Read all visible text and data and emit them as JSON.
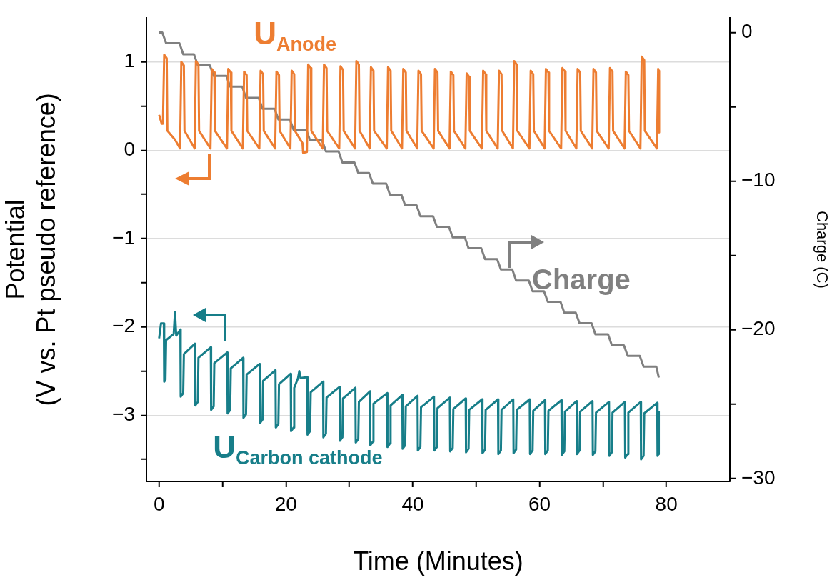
{
  "chart_data": {
    "type": "line",
    "xlabel": "Time (Minutes)",
    "ylabel": "Potential\n(V vs. Pt pseudo reference)",
    "y2label": "Charge (C)",
    "xlim": [
      -2,
      90
    ],
    "xticks": [
      0,
      {
        "value": 10,
        "label": null
      },
      20,
      {
        "value": 30,
        "label": null
      },
      40,
      {
        "value": 50,
        "label": null
      },
      60,
      {
        "value": 70,
        "label": null
      },
      80
    ],
    "ylim": [
      -3.75,
      1.5
    ],
    "yticks": [
      {
        "value": -3.5,
        "label": null
      },
      {
        "value": -3,
        "label": "−3"
      },
      {
        "value": -2.5,
        "label": null
      },
      {
        "value": -2,
        "label": "−2"
      },
      {
        "value": -1.5,
        "label": null
      },
      {
        "value": -1,
        "label": "−1"
      },
      {
        "value": -0.5,
        "label": null
      },
      0,
      {
        "value": 0.5,
        "label": null
      },
      1
    ],
    "y2lim": [
      -30.2,
      1
    ],
    "y2ticks": [
      {
        "value": -30,
        "label": "−30"
      },
      {
        "value": -25,
        "label": null
      },
      {
        "value": -20,
        "label": "−20"
      },
      {
        "value": -15,
        "label": null
      },
      {
        "value": -10,
        "label": "−10"
      },
      {
        "value": -5,
        "label": null
      },
      0
    ],
    "grid": "y",
    "legend": "center right",
    "marker": "none",
    "line_style": "solid",
    "series": [
      {
        "name": "U$_{Anode}$",
        "color": "#ed7d31",
        "x": [
          0,
          0.4,
          0.6,
          0.8,
          1.2,
          1.3,
          2.5,
          3.3,
          3.5,
          3.9,
          4.0,
          5.6,
          5.8,
          6.2,
          6.3,
          8.1,
          8.3,
          8.7,
          8.8,
          10.7,
          10.9,
          11.3,
          11.4,
          13.2,
          13.4,
          13.8,
          13.9,
          15.8,
          16.0,
          16.4,
          16.5,
          18.3,
          18.5,
          18.9,
          19.0,
          20.7,
          20.9,
          21.3,
          21.4,
          22.6,
          22.7,
          23.3,
          23.5,
          23.9,
          24.0,
          25.8,
          26.0,
          26.4,
          26.5,
          28.4,
          28.6,
          29.0,
          29.1,
          30.9,
          31.1,
          31.5,
          31.6,
          33.2,
          33.4,
          33.8,
          33.9,
          35.9,
          36.1,
          36.5,
          36.6,
          38.3,
          38.5,
          38.9,
          39.0,
          40.7,
          40.9,
          41.3,
          41.4,
          43.3,
          43.5,
          43.9,
          44.0,
          45.8,
          46.0,
          46.4,
          46.5,
          48.3,
          48.5,
          48.9,
          49.0,
          50.9,
          51.1,
          51.5,
          51.6,
          53.4,
          53.6,
          54.0,
          54.1,
          55.8,
          56.0,
          56.4,
          56.5,
          58.4,
          58.6,
          59.0,
          59.1,
          60.8,
          61.0,
          61.4,
          61.5,
          63.4,
          63.6,
          64.0,
          64.1,
          65.8,
          66.0,
          66.4,
          66.5,
          68.3,
          68.5,
          68.9,
          69.0,
          70.9,
          71.1,
          71.5,
          71.6,
          73.4,
          73.6,
          74.0,
          74.1,
          75.9,
          76.1,
          76.5,
          76.6,
          78.5,
          78.7,
          78.8,
          78.85
        ],
        "values": [
          0.4,
          0.3,
          0.3,
          1.08,
          1.04,
          0.22,
          0.12,
          0.02,
          1.0,
          0.96,
          0.22,
          0.02,
          1.01,
          0.97,
          0.22,
          0.02,
          0.92,
          0.88,
          0.22,
          0.02,
          0.92,
          0.88,
          0.22,
          0.02,
          0.89,
          0.85,
          0.22,
          0.02,
          0.9,
          0.86,
          0.22,
          0.02,
          0.89,
          0.85,
          0.22,
          0.02,
          0.9,
          0.86,
          0.22,
          0.08,
          -0.03,
          -0.02,
          0.97,
          0.93,
          0.22,
          0.02,
          0.97,
          0.93,
          0.22,
          0.02,
          0.95,
          0.91,
          0.22,
          0.02,
          1.01,
          0.97,
          0.22,
          0.02,
          0.94,
          0.9,
          0.22,
          0.02,
          0.94,
          0.9,
          0.22,
          0.02,
          0.92,
          0.88,
          0.22,
          0.02,
          0.9,
          0.86,
          0.22,
          0.02,
          0.92,
          0.88,
          0.22,
          0.02,
          0.89,
          0.85,
          0.22,
          0.02,
          0.87,
          0.83,
          0.22,
          0.02,
          0.9,
          0.86,
          0.22,
          0.02,
          0.9,
          0.86,
          0.22,
          0.02,
          1.01,
          0.97,
          0.22,
          0.02,
          0.9,
          0.86,
          0.22,
          0.02,
          0.92,
          0.88,
          0.22,
          0.02,
          0.93,
          0.89,
          0.22,
          0.02,
          0.92,
          0.88,
          0.22,
          0.02,
          0.92,
          0.88,
          0.22,
          0.02,
          0.93,
          0.89,
          0.22,
          0.02,
          0.89,
          0.85,
          0.22,
          0.02,
          1.06,
          1.02,
          0.22,
          0.02,
          0.92,
          0.9,
          0.2
        ]
      },
      {
        "name": "U$_{Carbon cathode}$",
        "color": "#177e89",
        "x": [
          0,
          0.3,
          0.75,
          0.8,
          1.0,
          1.1,
          2.3,
          2.5,
          2.7,
          3.35,
          3.4,
          3.8,
          3.9,
          5.65,
          5.7,
          6.1,
          6.2,
          8.15,
          8.2,
          8.6,
          8.7,
          10.75,
          10.8,
          11.2,
          11.3,
          13.25,
          13.3,
          13.7,
          13.8,
          15.85,
          15.9,
          16.3,
          16.4,
          18.35,
          18.4,
          18.8,
          18.9,
          20.75,
          20.8,
          21.2,
          21.3,
          21.9,
          22.1,
          22.3,
          23.35,
          23.4,
          23.8,
          23.9,
          25.85,
          25.9,
          26.3,
          26.4,
          28.45,
          28.5,
          28.9,
          29.0,
          30.95,
          31.0,
          31.4,
          31.5,
          33.25,
          33.3,
          33.7,
          33.8,
          35.95,
          36.0,
          36.4,
          36.5,
          38.35,
          38.4,
          38.8,
          38.9,
          40.75,
          40.8,
          41.2,
          41.3,
          43.35,
          43.4,
          43.8,
          43.9,
          45.85,
          45.9,
          46.3,
          46.4,
          48.35,
          48.4,
          48.8,
          48.9,
          50.95,
          51.0,
          51.4,
          51.5,
          53.45,
          53.5,
          53.9,
          54.0,
          55.85,
          55.9,
          56.3,
          56.4,
          58.45,
          58.5,
          58.9,
          59.0,
          60.85,
          60.9,
          61.3,
          61.4,
          63.45,
          63.5,
          63.9,
          64.0,
          65.85,
          65.9,
          66.3,
          66.4,
          68.35,
          68.4,
          68.8,
          68.9,
          70.95,
          71.0,
          71.4,
          71.5,
          73.45,
          73.5,
          73.9,
          74.0,
          75.95,
          76.0,
          76.4,
          76.5,
          78.55,
          78.6,
          78.75,
          78.8
        ],
        "values": [
          -2.13,
          -1.96,
          -1.96,
          -2.62,
          -2.6,
          -2.15,
          -2.08,
          -1.83,
          -2.1,
          -2.03,
          -2.79,
          -2.75,
          -2.31,
          -2.19,
          -2.89,
          -2.85,
          -2.35,
          -2.23,
          -2.94,
          -2.9,
          -2.41,
          -2.29,
          -2.98,
          -2.94,
          -2.47,
          -2.35,
          -3.03,
          -2.99,
          -2.54,
          -2.42,
          -3.09,
          -3.05,
          -2.61,
          -2.49,
          -3.14,
          -3.1,
          -2.65,
          -2.53,
          -3.18,
          -3.14,
          -2.69,
          -2.58,
          -2.5,
          -2.58,
          -2.57,
          -3.22,
          -3.18,
          -2.74,
          -2.62,
          -3.25,
          -3.21,
          -2.8,
          -2.68,
          -3.29,
          -3.25,
          -2.81,
          -2.69,
          -3.31,
          -3.27,
          -2.85,
          -2.73,
          -3.34,
          -3.3,
          -2.87,
          -2.75,
          -3.36,
          -3.32,
          -2.89,
          -2.77,
          -3.38,
          -3.34,
          -2.9,
          -2.78,
          -3.4,
          -3.36,
          -2.91,
          -2.79,
          -3.4,
          -3.36,
          -2.92,
          -2.8,
          -3.41,
          -3.37,
          -2.93,
          -2.81,
          -3.42,
          -3.38,
          -2.94,
          -2.82,
          -3.43,
          -3.39,
          -2.94,
          -2.82,
          -3.44,
          -3.4,
          -2.94,
          -2.82,
          -3.43,
          -3.39,
          -2.94,
          -2.82,
          -3.44,
          -3.4,
          -2.95,
          -2.83,
          -3.44,
          -3.4,
          -2.95,
          -2.83,
          -3.45,
          -3.41,
          -2.96,
          -2.84,
          -3.44,
          -3.4,
          -2.96,
          -2.84,
          -3.45,
          -3.41,
          -2.97,
          -2.85,
          -3.46,
          -3.42,
          -2.97,
          -2.85,
          -3.48,
          -3.44,
          -2.97,
          -2.85,
          -3.5,
          -3.46,
          -2.98,
          -2.86,
          -3.46,
          -3.44,
          -2.95
        ]
      },
      {
        "name": "Charge",
        "color": "#808080",
        "axis": "y2",
        "x": [
          0,
          0.5,
          1.1,
          3.2,
          3.8,
          5.5,
          6.1,
          8.0,
          8.6,
          10.6,
          11.2,
          13.1,
          13.7,
          15.7,
          16.3,
          18.2,
          18.8,
          20.6,
          21.2,
          23.2,
          23.8,
          25.7,
          26.3,
          28.3,
          28.9,
          30.8,
          31.4,
          33.1,
          33.7,
          35.8,
          36.4,
          38.2,
          38.8,
          40.6,
          41.2,
          43.2,
          43.8,
          45.7,
          46.3,
          48.2,
          48.8,
          50.8,
          51.4,
          53.3,
          53.9,
          55.7,
          56.3,
          58.3,
          58.9,
          60.7,
          61.3,
          63.3,
          63.9,
          65.7,
          66.3,
          68.2,
          68.8,
          70.8,
          71.4,
          73.3,
          73.9,
          75.8,
          76.4,
          78.4,
          78.8
        ],
        "values": [
          0,
          0,
          -0.71,
          -0.71,
          -1.46,
          -1.46,
          -2.2,
          -2.2,
          -2.92,
          -2.92,
          -3.63,
          -3.63,
          -4.39,
          -4.39,
          -5.13,
          -5.13,
          -5.84,
          -5.84,
          -6.54,
          -6.54,
          -7.25,
          -7.25,
          -8.0,
          -8.0,
          -8.74,
          -8.74,
          -9.45,
          -9.45,
          -10.16,
          -10.16,
          -10.91,
          -10.91,
          -11.62,
          -11.62,
          -12.36,
          -12.36,
          -13.07,
          -13.07,
          -13.77,
          -13.77,
          -14.51,
          -14.51,
          -15.24,
          -15.24,
          -15.94,
          -15.94,
          -16.68,
          -16.68,
          -17.41,
          -17.41,
          -18.11,
          -18.11,
          -18.85,
          -18.85,
          -19.56,
          -19.56,
          -20.3,
          -20.3,
          -21.04,
          -21.04,
          -21.75,
          -21.75,
          -22.47,
          -22.47,
          -23.21
        ]
      }
    ]
  }
}
